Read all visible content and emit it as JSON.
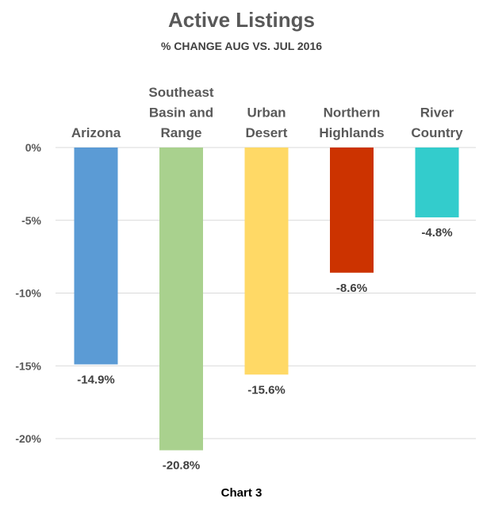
{
  "chart_data": {
    "type": "bar",
    "title": "Active Listings",
    "subtitle": "% CHANGE AUG VS. JUL 2016",
    "caption": "Chart 3",
    "categories": [
      [
        "Arizona"
      ],
      [
        "Southeast",
        "Basin and",
        "Range"
      ],
      [
        "Urban",
        "Desert"
      ],
      [
        "Northern",
        "Highlands"
      ],
      [
        "River",
        "Country"
      ]
    ],
    "values": [
      -14.9,
      -20.8,
      -15.6,
      -8.6,
      -4.8
    ],
    "value_labels": [
      "-14.9%",
      "-20.8%",
      "-15.6%",
      "-8.6%",
      "-4.8%"
    ],
    "colors": [
      "#5b9bd5",
      "#a9d18e",
      "#ffd966",
      "#cc3300",
      "#33cccc"
    ],
    "yticks": [
      0,
      -5,
      -10,
      -15,
      -20
    ],
    "ytick_labels": [
      "0%",
      "-5%",
      "-10%",
      "-15%",
      "-20%"
    ],
    "ylim": [
      -20,
      0
    ],
    "grid": true,
    "legend": "none",
    "category_label_position": "top"
  }
}
